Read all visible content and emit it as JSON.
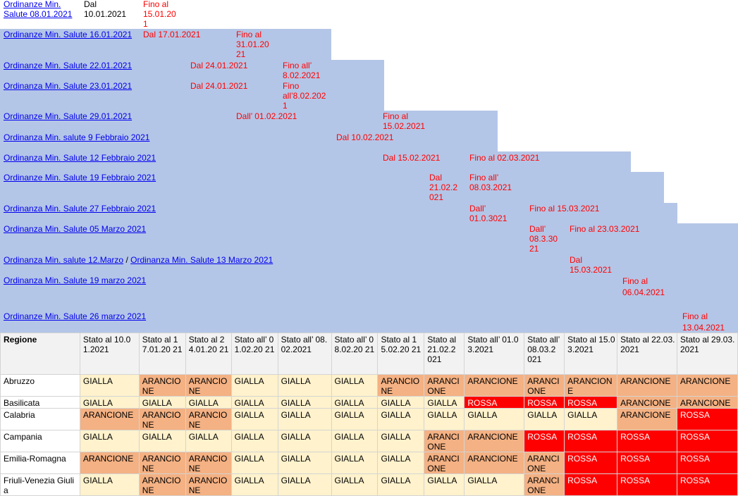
{
  "ordinances": [
    {
      "label_lines": [
        "Ordinanze Min.",
        "Salute 08.01.2021"
      ],
      "from": "Dal",
      "from2": "10.01.2021",
      "to_lines": [
        "Fino al",
        "15.01.20",
        "1"
      ]
    },
    {
      "label": "Ordinanze Min. Salute 16.01.2021",
      "from": "Dal 17.01.2021",
      "to_lines": [
        "Fino al",
        "31.01.20",
        "21"
      ]
    },
    {
      "label": "Ordinanze Min. Salute 22.01.2021",
      "from": "Dal 24.01.2021",
      "to_lines": [
        "Fino all’",
        "8.02.2021"
      ]
    },
    {
      "label": "Ordinanza Min. Salute 23.01.2021",
      "from": "Dal 24.01.2021",
      "to_lines": [
        "Fino",
        "all’8.02.202",
        "1"
      ]
    },
    {
      "label": "Ordinanze Min. Salute 29.01.2021",
      "from": "Dall’ 01.02.2021",
      "to_lines": [
        "Fino al",
        "15.02.2021"
      ]
    },
    {
      "label": "Ordinanza Min. salute 9 Febbraio 2021",
      "from": "Dal 10.02.2021"
    },
    {
      "label": "Ordinanza Min. Salute 12 Febbraio 2021",
      "from": "Dal 15.02.2021",
      "to": "Fino al 02.03.2021"
    },
    {
      "label": "Ordinanze Min. Salute 19 Febbraio 2021",
      "from_lines": [
        "Dal",
        "21.02.2",
        "021"
      ],
      "to_lines": [
        "Fino all’",
        "08.03.2021"
      ]
    },
    {
      "label": "Ordinanza Min. Salute 27 Febbraio 2021",
      "from_lines": [
        "Dall’",
        "01.0.3021"
      ],
      "to": "Fino al 15.03.2021"
    },
    {
      "label": "Ordinanza Min. Salute 05 Marzo 2021",
      "from_lines": [
        "Dall’",
        "08.3.30",
        "21"
      ],
      "to": "Fino al 23.03.2021"
    },
    {
      "label": "Ordinanza Min. salute 12.Marzo",
      "separator": "/",
      "label2": "Ordinanza Min. Salute 13 Marzo 2021",
      "from_lines": [
        "Dal",
        "15.03.2021"
      ]
    },
    {
      "label": "Ordinanza Min. Salute 19 marzo 2021",
      "to_lines": [
        "Fino al",
        "06.04.2021"
      ]
    },
    {
      "label": "Ordinanze Min. Salute 26 marzo 2021",
      "to_lines": [
        "Fino al",
        "13.04.2021"
      ]
    }
  ],
  "table": {
    "header": [
      "Regione",
      "Stato al 10.01.2021",
      "Stato al 17.01.20 21",
      "Stato al 24.01.20 21",
      "Stato all’ 01.02.20 21",
      "Stato all’ 08.02.2021",
      "Stato all’ 08.02.20 21",
      "Stato al 15.02.20 21",
      "Stato al 21.02.2 021",
      "Stato all’ 01.03.2021",
      "Stato all’ 08.03.2 021",
      "Stato al 15.03.2021",
      "Stato al 22.03.2021",
      "Stato al 29.03.2021"
    ],
    "rows": [
      {
        "region": "Abruzzo",
        "cells": [
          "GIALLA",
          "ARANCIONE",
          "ARANCIONE",
          "GIALLA",
          "GIALLA",
          "GIALLA",
          "ARANCIONE",
          "ARANCIONE",
          "ARANCIONE",
          "ARANCIONE",
          "ARANCIONE",
          "ARANCIONE",
          "ARANCIONE"
        ]
      },
      {
        "region": "Basilicata",
        "cells": [
          "GIALLA",
          "GIALLA",
          "GIALLA",
          "GIALLA",
          "GIALLA",
          "GIALLA",
          "GIALLA",
          "GIALLA",
          "ROSSA",
          "ROSSA",
          "ROSSA",
          "ARANCIONE",
          "ARANCIONE"
        ]
      },
      {
        "region": "Calabria",
        "cells": [
          "ARANCIONE",
          "ARANCIONE",
          "ARANCIONE",
          "GIALLA",
          "GIALLA",
          "GIALLA",
          "GIALLA",
          "GIALLA",
          "GIALLA",
          "GIALLA",
          "GIALLA",
          "ARANCIONE",
          "ROSSA"
        ]
      },
      {
        "region": "Campania",
        "cells": [
          "GIALLA",
          "GIALLA",
          "GIALLA",
          "GIALLA",
          "GIALLA",
          "GIALLA",
          "GIALLA",
          "ARANCIONE",
          "ARANCIONE",
          "ROSSA",
          "ROSSA",
          "ROSSA",
          "ROSSA"
        ]
      },
      {
        "region": "Emilia-Romagna",
        "cells": [
          "ARANCIONE",
          "ARANCIONE",
          "ARANCIONE",
          "GIALLA",
          "GIALLA",
          "GIALLA",
          "GIALLA",
          "ARANCIONE",
          "ARANCIONE",
          "ARANCIONE",
          "ROSSA",
          "ROSSA",
          "ROSSA"
        ]
      },
      {
        "region": "Friuli-Venezia Giulia",
        "cells": [
          "GIALLA",
          "ARANCIONE",
          "ARANCIONE",
          "GIALLA",
          "GIALLA",
          "GIALLA",
          "GIALLA",
          "GIALLA",
          "GIALLA",
          "ARANCIONE",
          "ROSSA",
          "ROSSA",
          "ROSSA"
        ]
      }
    ],
    "zone_colors": {
      "GIALLA": "#fff2cc",
      "ARANCIONE": "#f4b183",
      "ROSSA": "#ff0000"
    }
  }
}
